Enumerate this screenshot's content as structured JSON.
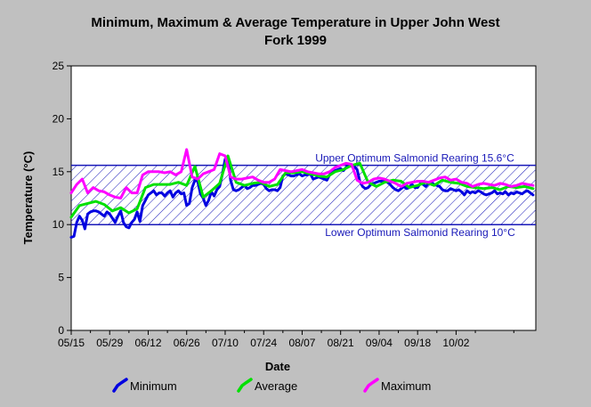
{
  "chart_data": {
    "type": "line",
    "title_line1": "Minimum, Maximum & Average Temperature in Upper John West",
    "title_line2": "Fork 1999",
    "xlabel": "Date",
    "ylabel": "Temperature (°C)",
    "ylim": [
      0,
      25
    ],
    "yticks": [
      "0",
      "5",
      "10",
      "15",
      "20",
      "25"
    ],
    "xlim": [
      "05/15",
      "10/31"
    ],
    "x_tick_labels": [
      "05/15",
      "05/29",
      "06/12",
      "06/26",
      "07/10",
      "07/24",
      "08/07",
      "08/21",
      "09/04",
      "09/18",
      "10/02"
    ],
    "x_tick_days": [
      0,
      14,
      28,
      42,
      56,
      70,
      84,
      98,
      112,
      126,
      140
    ],
    "grid": false,
    "legend_position": "bottom",
    "band": {
      "upper": 15.6,
      "lower": 10,
      "upper_label": "Upper Optimum Salmonid Rearing 15.6°C",
      "lower_label": "Lower Optimum Salmonid Rearing 10°C"
    },
    "series": [
      {
        "name": "Minimum",
        "color": "#0000e0",
        "x": [
          0,
          1,
          2,
          3,
          4,
          5,
          6,
          7,
          8,
          9,
          10,
          11,
          12,
          13,
          14,
          15,
          16,
          17,
          18,
          19,
          20,
          21,
          22,
          23,
          24,
          25,
          26,
          27,
          28,
          29,
          30,
          31,
          32,
          33,
          34,
          35,
          36,
          37,
          38,
          39,
          40,
          41,
          42,
          43,
          44,
          45,
          46,
          47,
          48,
          49,
          50,
          51,
          52,
          53,
          54,
          55,
          56,
          57,
          58,
          59,
          60,
          61,
          62,
          63,
          64,
          65,
          66,
          67,
          68,
          69,
          70,
          71,
          72,
          73,
          74,
          75,
          76,
          77,
          78,
          79,
          80,
          81,
          82,
          83,
          84,
          85,
          86,
          87,
          88,
          89,
          90,
          91,
          92,
          93,
          94,
          95,
          96,
          97,
          98,
          99,
          100,
          101,
          102,
          103,
          104,
          105,
          106,
          107,
          108,
          109,
          110,
          111,
          112,
          113,
          114,
          115,
          116,
          117,
          118,
          119,
          120,
          121,
          122,
          123,
          124,
          125,
          126,
          127,
          128,
          129,
          130,
          131,
          132,
          133,
          134,
          135,
          136,
          137,
          138,
          139,
          140,
          141,
          142,
          143,
          144,
          145,
          146,
          147,
          148,
          149,
          150,
          151,
          152,
          153,
          154,
          155,
          156,
          157,
          158,
          159,
          160,
          161,
          162,
          163,
          164,
          165,
          166,
          167,
          168
        ],
        "values": [
          8.8,
          8.9,
          10.2,
          10.8,
          10.4,
          9.6,
          11.0,
          11.2,
          11.3,
          11.3,
          11.2,
          11.0,
          10.8,
          11.2,
          11.0,
          10.6,
          10.2,
          10.8,
          11.3,
          10.2,
          9.8,
          9.7,
          10.2,
          10.5,
          11.2,
          10.3,
          11.8,
          12.3,
          12.8,
          13.0,
          13.2,
          12.8,
          13.0,
          13.0,
          12.7,
          13.0,
          13.2,
          12.6,
          13.0,
          13.2,
          12.9,
          13.0,
          11.8,
          12.0,
          13.5,
          14.2,
          14.1,
          12.9,
          12.5,
          11.8,
          12.3,
          13.1,
          12.7,
          13.3,
          13.6,
          14.8,
          16.2,
          16.3,
          14.2,
          13.3,
          13.2,
          13.3,
          13.5,
          13.7,
          13.4,
          13.5,
          13.7,
          13.7,
          13.8,
          13.9,
          13.8,
          13.4,
          13.2,
          13.3,
          13.3,
          13.2,
          13.5,
          14.6,
          14.8,
          14.7,
          14.6,
          14.6,
          14.7,
          14.8,
          14.6,
          14.7,
          14.7,
          14.8,
          14.3,
          14.4,
          14.5,
          14.4,
          14.3,
          14.2,
          14.7,
          15.0,
          15.1,
          15.2,
          15.3,
          15.1,
          15.4,
          15.6,
          15.5,
          15.5,
          15.2,
          14.1,
          13.6,
          13.4,
          13.5,
          13.8,
          13.9,
          14.0,
          14.1,
          14.1,
          14.1,
          14.0,
          13.8,
          13.5,
          13.3,
          13.2,
          13.4,
          13.6,
          13.4,
          13.5,
          13.8,
          13.5,
          13.5,
          13.9,
          13.8,
          13.6,
          13.9,
          14.0,
          13.8,
          13.7,
          13.6,
          13.3,
          13.2,
          13.2,
          13.4,
          13.3,
          13.2,
          13.3,
          13.1,
          12.8,
          13.2,
          13.0,
          13.1,
          13.0,
          13.2,
          13.1,
          12.9,
          12.8,
          12.9,
          13.0,
          13.2,
          12.9,
          13.0,
          12.9,
          13.1,
          12.8,
          13.0,
          12.9,
          13.1,
          13.0,
          12.9,
          13.1,
          13.2,
          13.0,
          12.8
        ],
        "note": "values from day 130 onward continue to the right edge"
      },
      {
        "name": "Average",
        "color": "#00e000",
        "x": [
          0,
          3,
          6,
          9,
          12,
          15,
          18,
          21,
          24,
          27,
          30,
          33,
          36,
          39,
          42,
          45,
          48,
          51,
          54,
          57,
          60,
          63,
          66,
          69,
          72,
          75,
          78,
          81,
          84,
          87,
          90,
          93,
          96,
          99,
          102,
          105,
          108,
          111,
          114,
          117,
          120,
          123,
          126,
          129,
          132,
          135,
          138,
          141,
          144,
          147,
          150,
          153,
          156,
          159,
          162,
          165,
          168
        ],
        "values": [
          10.7,
          11.8,
          12.0,
          12.2,
          11.9,
          11.3,
          11.6,
          11.1,
          11.5,
          13.5,
          13.8,
          13.8,
          13.8,
          14.0,
          13.7,
          15.5,
          12.6,
          13.2,
          13.9,
          16.5,
          14.0,
          13.7,
          13.9,
          14.0,
          13.6,
          13.8,
          14.9,
          14.9,
          15.0,
          14.8,
          14.6,
          14.5,
          15.0,
          15.2,
          15.6,
          15.8,
          14.0,
          13.6,
          14.0,
          14.2,
          14.1,
          13.5,
          13.7,
          14.0,
          13.7,
          14.2,
          14.0,
          13.9,
          13.6,
          13.5,
          13.4,
          13.5,
          13.3,
          13.6,
          13.5,
          13.6,
          13.4
        ]
      },
      {
        "name": "Maximum",
        "color": "#ff00ff",
        "x": [
          0,
          2,
          4,
          6,
          8,
          10,
          12,
          14,
          16,
          18,
          20,
          22,
          24,
          26,
          28,
          30,
          32,
          34,
          36,
          38,
          40,
          42,
          44,
          46,
          48,
          50,
          52,
          54,
          56,
          58,
          60,
          62,
          64,
          66,
          68,
          70,
          72,
          74,
          76,
          78,
          80,
          82,
          84,
          86,
          88,
          90,
          92,
          94,
          96,
          98,
          100,
          102,
          104,
          106,
          108,
          110,
          112,
          114,
          116,
          118,
          120,
          122,
          124,
          126,
          128,
          130,
          132,
          134,
          136,
          138,
          140,
          142,
          144,
          146,
          148,
          150,
          152,
          154,
          156,
          158,
          160,
          162,
          164,
          166,
          168
        ],
        "values": [
          13.0,
          13.8,
          14.3,
          13.0,
          13.5,
          13.2,
          13.1,
          12.8,
          12.6,
          12.5,
          13.5,
          13.0,
          13.0,
          14.7,
          15.0,
          15.0,
          15.0,
          14.9,
          15.0,
          14.7,
          15.0,
          17.1,
          14.5,
          14.3,
          14.8,
          15.0,
          15.2,
          16.7,
          16.5,
          14.5,
          14.3,
          14.3,
          14.4,
          14.5,
          14.2,
          14.0,
          14.0,
          14.3,
          15.2,
          15.1,
          15.0,
          15.1,
          15.2,
          15.0,
          14.9,
          14.8,
          14.8,
          15.0,
          15.4,
          15.6,
          15.8,
          15.7,
          14.2,
          13.9,
          14.0,
          14.3,
          14.4,
          14.3,
          14.1,
          13.9,
          13.6,
          13.9,
          14.0,
          14.1,
          14.1,
          14.0,
          14.2,
          14.4,
          14.5,
          14.2,
          14.3,
          14.0,
          13.9,
          13.6,
          13.8,
          13.9,
          13.8,
          13.7,
          13.9,
          13.8,
          13.6,
          13.7,
          13.9,
          13.8,
          13.7
        ]
      }
    ],
    "legend": [
      {
        "name": "Minimum",
        "color": "#0000e0"
      },
      {
        "name": "Average",
        "color": "#00e000"
      },
      {
        "name": "Maximum",
        "color": "#ff00ff"
      }
    ]
  }
}
